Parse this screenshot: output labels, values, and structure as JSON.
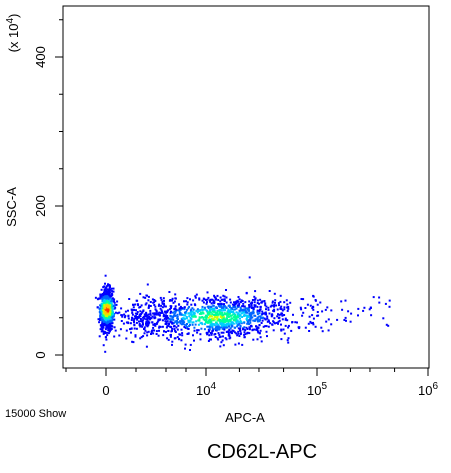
{
  "chart_data": {
    "type": "scatter",
    "subtype": "flow-cytometry-density-dotplot",
    "xlabel": "APC-A",
    "ylabel": "SSC-A",
    "y_multiplier_label": "(x 10",
    "y_multiplier_exponent": "4",
    "y_multiplier_close": ")",
    "caption": "CD62L-APC",
    "event_count_label": "15000 Show",
    "x_scale": "biexponential",
    "x_ticks": [
      {
        "value": 0,
        "base": "0",
        "exp": ""
      },
      {
        "value": 10000,
        "base": "10",
        "exp": "4"
      },
      {
        "value": 100000,
        "base": "10",
        "exp": "5"
      },
      {
        "value": 1000000,
        "base": "10",
        "exp": "6"
      }
    ],
    "y_ticks": [
      {
        "value": 0,
        "label": "0"
      },
      {
        "value": 200,
        "label": "200"
      },
      {
        "value": 400,
        "label": "400"
      }
    ],
    "ylim": [
      -20,
      470
    ],
    "grid": false,
    "density_colors": [
      "#0000ff",
      "#0066ff",
      "#00ccff",
      "#00ff99",
      "#ccff00",
      "#ffcc00",
      "#ff3300"
    ],
    "populations": [
      {
        "x_center": 0,
        "x_spread": 0.012,
        "y_center": 62,
        "y_spread": 14,
        "density": "high"
      },
      {
        "x_center": 12000,
        "x_spread": 0.35,
        "y_center": 52,
        "y_spread": 14,
        "density": "medium"
      }
    ]
  }
}
